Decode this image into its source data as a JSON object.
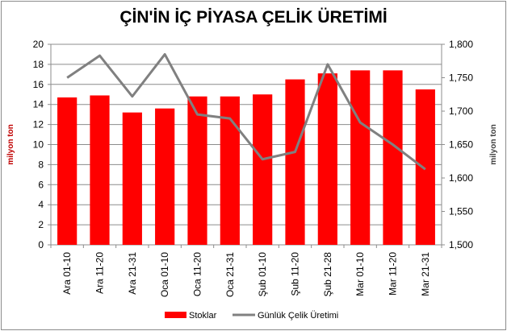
{
  "chart_data": {
    "type": "bar+line",
    "title": "ÇİN'İN İÇ PİYASA ÇELİK ÜRETİMİ",
    "categories": [
      "Ara 01-10",
      "Ara 11-20",
      "Ara 21-31",
      "Oca 01-10",
      "Oca 11-20",
      "Oca 21-31",
      "Şub 01-10",
      "Şub 11-20",
      "Şub 21-28",
      "Mar 01-10",
      "Mar 11-20",
      "Mar 21-31"
    ],
    "series": [
      {
        "name": "Stoklar",
        "type": "bar",
        "axis": "left",
        "color": "#ff0000",
        "values": [
          14.7,
          14.9,
          13.2,
          13.6,
          14.8,
          14.8,
          15.0,
          16.5,
          17.1,
          17.4,
          17.4,
          15.5
        ]
      },
      {
        "name": "Günlük Çelik Üretimi",
        "type": "line",
        "axis": "right",
        "color": "#808080",
        "values": [
          1.75,
          1.783,
          1.722,
          1.785,
          1.695,
          1.689,
          1.628,
          1.639,
          1.77,
          1.683,
          1.65,
          1.613
        ]
      }
    ],
    "ylabel_left": "milyon ton",
    "ylabel_right": "milyon ton",
    "ylim_left": [
      0,
      20
    ],
    "ylim_right": [
      1.5,
      1.8
    ],
    "yticks_left": [
      "0",
      "2",
      "4",
      "6",
      "8",
      "10",
      "12",
      "14",
      "16",
      "18",
      "20"
    ],
    "yticks_right": [
      "1,500",
      "1,550",
      "1,600",
      "1,650",
      "1,700",
      "1,750",
      "1,800"
    ],
    "grid": true,
    "legend_position": "bottom",
    "left_label_color": "#c00000",
    "right_label_color": "#404040"
  }
}
